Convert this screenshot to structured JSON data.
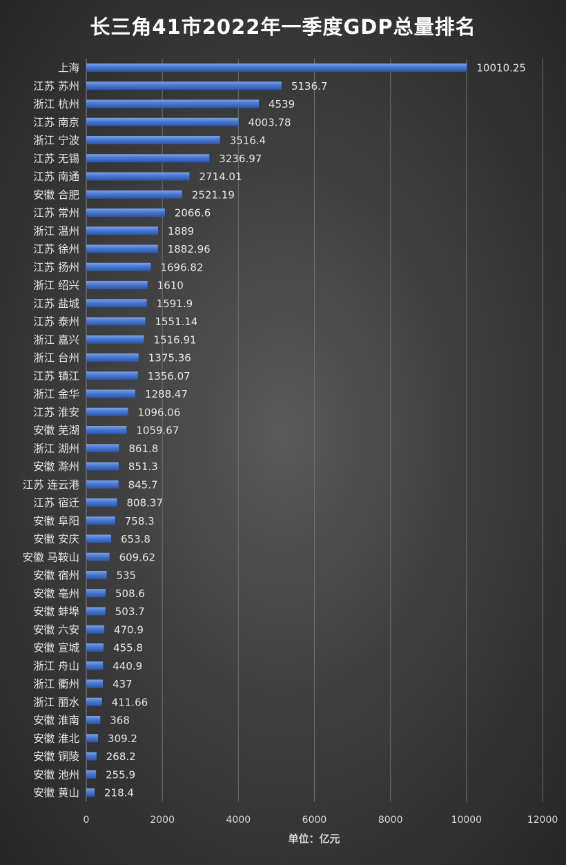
{
  "chart_data": {
    "type": "bar",
    "orientation": "horizontal",
    "title": "长三角41市2022年一季度GDP总量排名",
    "xlabel": "单位：亿元",
    "ylabel": "",
    "xlim": [
      0,
      12000
    ],
    "xticks": [
      0,
      2000,
      4000,
      6000,
      8000,
      10000,
      12000
    ],
    "grid": true,
    "bar_color": "#4a78d0",
    "categories": [
      "上海",
      "江苏 苏州",
      "浙江 杭州",
      "江苏 南京",
      "浙江 宁波",
      "江苏 无锡",
      "江苏 南通",
      "安徽 合肥",
      "江苏 常州",
      "浙江 温州",
      "江苏 徐州",
      "江苏 扬州",
      "浙江 绍兴",
      "江苏 盐城",
      "江苏 泰州",
      "浙江 嘉兴",
      "浙江 台州",
      "江苏 镇江",
      "浙江 金华",
      "江苏 淮安",
      "安徽 芜湖",
      "浙江 湖州",
      "安徽 滁州",
      "江苏 连云港",
      "江苏 宿迁",
      "安徽 阜阳",
      "安徽 安庆",
      "安徽 马鞍山",
      "安徽 宿州",
      "安徽 亳州",
      "安徽 蚌埠",
      "安徽 六安",
      "安徽 宣城",
      "浙江 舟山",
      "浙江 衢州",
      "浙江 丽水",
      "安徽 淮南",
      "安徽 淮北",
      "安徽 铜陵",
      "安徽 池州",
      "安徽 黄山"
    ],
    "values": [
      10010.25,
      5136.7,
      4539,
      4003.78,
      3516.4,
      3236.97,
      2714.01,
      2521.19,
      2066.6,
      1889,
      1882.96,
      1696.82,
      1610,
      1591.9,
      1551.14,
      1516.91,
      1375.36,
      1356.07,
      1288.47,
      1096.06,
      1059.67,
      861.8,
      851.3,
      845.7,
      808.37,
      758.3,
      653.8,
      609.62,
      535,
      508.6,
      503.7,
      470.9,
      455.8,
      440.9,
      437,
      411.66,
      368,
      309.2,
      268.2,
      255.9,
      218.4
    ]
  }
}
